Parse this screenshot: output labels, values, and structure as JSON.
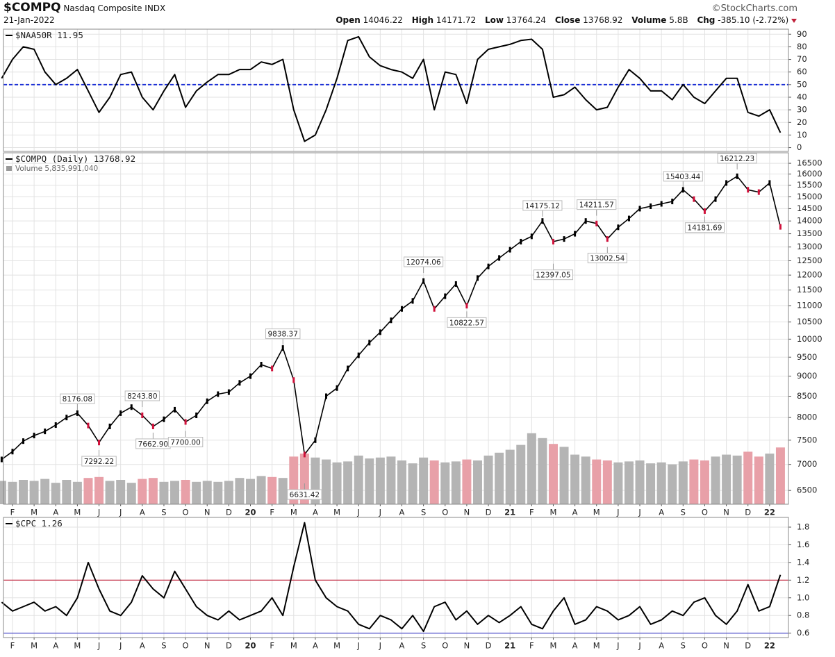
{
  "header": {
    "symbol": "$COMPQ",
    "name": "Nasdaq Composite",
    "exchange": "INDX",
    "date": "21-Jan-2022",
    "copyright": "©StockCharts.com",
    "stats": [
      {
        "label": "Open",
        "value": "14046.22"
      },
      {
        "label": "High",
        "value": "14171.72"
      },
      {
        "label": "Low",
        "value": "13764.24"
      },
      {
        "label": "Close",
        "value": "13768.92"
      },
      {
        "label": "Volume",
        "value": "5.8B"
      },
      {
        "label": "Chg",
        "value": "-385.10 (-2.72%)"
      }
    ]
  },
  "chart_data": [
    {
      "type": "line",
      "title": "$NAA50R",
      "color": "#000000",
      "grid": true,
      "values": [
        55,
        70,
        80,
        78,
        60,
        50,
        55,
        62,
        45,
        28,
        40,
        58,
        60,
        40,
        30,
        45,
        58,
        32,
        45,
        52,
        58,
        58,
        62,
        62,
        68,
        66,
        70,
        30,
        5,
        10,
        30,
        55,
        85,
        88,
        72,
        65,
        62,
        60,
        55,
        70,
        30,
        60,
        58,
        35,
        70,
        78,
        80,
        82,
        85,
        86,
        78,
        40,
        42,
        48,
        38,
        30,
        32,
        48,
        62,
        55,
        45,
        45,
        38,
        50,
        40,
        35,
        45,
        55,
        55,
        28,
        25,
        30,
        11.95
      ],
      "ylim": [
        -3,
        94
      ],
      "yticks": [
        0,
        10,
        20,
        30,
        40,
        50,
        60,
        70,
        80,
        90
      ],
      "reference_lines": [
        {
          "value": 50,
          "color": "#1a2fd6",
          "dash": true
        }
      ]
    },
    {
      "type": "line",
      "title": "$COMPQ (Daily)",
      "log": true,
      "grid": true,
      "color": "#000000",
      "up_color": "#000000",
      "down_color": "#d0103a",
      "categories": [
        null,
        "F",
        null,
        "M",
        null,
        "A",
        null,
        "M",
        null,
        "J",
        null,
        "J",
        null,
        "A",
        null,
        "S",
        null,
        "O",
        null,
        "N",
        null,
        "D",
        null,
        "20",
        null,
        "F",
        null,
        "M",
        null,
        "A",
        null,
        "M",
        null,
        "J",
        null,
        "J",
        null,
        "A",
        null,
        "S",
        null,
        "O",
        null,
        "N",
        null,
        "D",
        null,
        "21",
        null,
        "F",
        null,
        "M",
        null,
        "A",
        null,
        "M",
        null,
        "J",
        null,
        "J",
        null,
        "A",
        null,
        "S",
        null,
        "O",
        null,
        "N",
        null,
        "D",
        null,
        "22",
        null
      ],
      "values": [
        7100,
        7260,
        7480,
        7600,
        7690,
        7830,
        8000,
        8100,
        7820,
        7450,
        7800,
        8100,
        8240,
        8050,
        7800,
        7960,
        8180,
        7900,
        8050,
        8380,
        8550,
        8600,
        8830,
        9000,
        9300,
        9200,
        9750,
        8900,
        7200,
        7500,
        8500,
        8700,
        9200,
        9550,
        9900,
        10200,
        10550,
        10900,
        11150,
        11800,
        10900,
        11300,
        11700,
        11000,
        11900,
        12300,
        12600,
        12900,
        13200,
        13400,
        14000,
        13200,
        13300,
        13500,
        14000,
        13900,
        13300,
        13750,
        14100,
        14500,
        14600,
        14700,
        14800,
        15300,
        14900,
        14400,
        14900,
        15600,
        15900,
        15300,
        15200,
        15600,
        13768.92
      ],
      "ylim": [
        6250,
        17000
      ],
      "yticks": [
        6500,
        7000,
        7500,
        8000,
        8500,
        9000,
        9500,
        10000,
        10500,
        11000,
        11500,
        12000,
        12500,
        13000,
        13500,
        14000,
        14500,
        15000,
        15500,
        16000,
        16500
      ],
      "annotations": [
        {
          "x": 7,
          "value": 8176.08
        },
        {
          "x": 9,
          "value": 7292.22
        },
        {
          "x": 13,
          "value": 8243.8,
          "label": "8243.80"
        },
        {
          "x": 14,
          "value": 7662.9,
          "label": "7662.90"
        },
        {
          "x": 17,
          "value": 7700,
          "label": "7700.00"
        },
        {
          "x": 26,
          "value": 9838.37
        },
        {
          "x": 28,
          "value": 6631.42
        },
        {
          "x": 39,
          "value": 12074.06
        },
        {
          "x": 43,
          "value": 10822.57
        },
        {
          "x": 50,
          "value": 14175.12
        },
        {
          "x": 51,
          "value": 12397.05
        },
        {
          "x": 55,
          "value": 14211.57
        },
        {
          "x": 56,
          "value": 13002.54
        },
        {
          "x": 63,
          "value": 15403.44
        },
        {
          "x": 65,
          "value": 14181.69
        },
        {
          "x": 68,
          "value": 16212.23
        }
      ],
      "volume": {
        "name": "Volume",
        "last_label": "5,835,991,040",
        "values": [
          2400000000.0,
          2300000000.0,
          2500000000.0,
          2400000000.0,
          2600000000.0,
          2200000000.0,
          2500000000.0,
          2300000000.0,
          2700000000.0,
          2800000000.0,
          2400000000.0,
          2500000000.0,
          2200000000.0,
          2600000000.0,
          2700000000.0,
          2300000000.0,
          2400000000.0,
          2500000000.0,
          2300000000.0,
          2400000000.0,
          2300000000.0,
          2400000000.0,
          2700000000.0,
          2600000000.0,
          2900000000.0,
          2800000000.0,
          2700000000.0,
          4900000000.0,
          5200000000.0,
          4800000000.0,
          4600000000.0,
          4300000000.0,
          4400000000.0,
          5000000000.0,
          4700000000.0,
          4800000000.0,
          4900000000.0,
          4500000000.0,
          4200000000.0,
          4800000000.0,
          4500000000.0,
          4300000000.0,
          4400000000.0,
          4600000000.0,
          4500000000.0,
          5000000000.0,
          5300000000.0,
          5600000000.0,
          6100000000.0,
          7300000000.0,
          6800000000.0,
          6200000000.0,
          5900000000.0,
          5100000000.0,
          4900000000.0,
          4600000000.0,
          4500000000.0,
          4300000000.0,
          4400000000.0,
          4500000000.0,
          4200000000.0,
          4300000000.0,
          4100000000.0,
          4400000000.0,
          4600000000.0,
          4500000000.0,
          4900000000.0,
          5100000000.0,
          5000000000.0,
          5400000000.0,
          4900000000.0,
          5200000000.0,
          5835991040
        ]
      }
    },
    {
      "type": "line",
      "title": "$CPC",
      "color": "#000000",
      "grid": true,
      "categories": [
        null,
        "F",
        null,
        "M",
        null,
        "A",
        null,
        "M",
        null,
        "J",
        null,
        "J",
        null,
        "A",
        null,
        "S",
        null,
        "O",
        null,
        "N",
        null,
        "D",
        null,
        "20",
        null,
        "F",
        null,
        "M",
        null,
        "A",
        null,
        "M",
        null,
        "J",
        null,
        "J",
        null,
        "A",
        null,
        "S",
        null,
        "O",
        null,
        "N",
        null,
        "D",
        null,
        "21",
        null,
        "F",
        null,
        "M",
        null,
        "A",
        null,
        "M",
        null,
        "J",
        null,
        "J",
        null,
        "A",
        null,
        "S",
        null,
        "O",
        null,
        "N",
        null,
        "D",
        null,
        "22",
        null
      ],
      "values": [
        0.95,
        0.85,
        0.9,
        0.95,
        0.85,
        0.9,
        0.8,
        1.0,
        1.4,
        1.1,
        0.85,
        0.8,
        0.95,
        1.25,
        1.1,
        1.0,
        1.3,
        1.1,
        0.9,
        0.8,
        0.75,
        0.85,
        0.75,
        0.8,
        0.85,
        1.0,
        0.8,
        1.35,
        1.85,
        1.2,
        1.0,
        0.9,
        0.85,
        0.7,
        0.65,
        0.8,
        0.75,
        0.65,
        0.8,
        0.62,
        0.9,
        0.95,
        0.75,
        0.85,
        0.7,
        0.8,
        0.72,
        0.8,
        0.9,
        0.7,
        0.65,
        0.85,
        1.0,
        0.7,
        0.75,
        0.9,
        0.85,
        0.75,
        0.8,
        0.9,
        0.7,
        0.75,
        0.85,
        0.8,
        0.95,
        1.0,
        0.8,
        0.7,
        0.85,
        1.15,
        0.85,
        0.9,
        1.26
      ],
      "ylim": [
        0.55,
        1.91
      ],
      "yticks": [
        0.6,
        0.8,
        {
          "value": 1,
          "label": "1.0"
        },
        1.2,
        1.4,
        1.6,
        1.8
      ],
      "reference_lines": [
        {
          "value": 1.2,
          "color": "#c0203a",
          "dash": false
        },
        {
          "value": 0.6,
          "color": "#4a4ac8",
          "dash": false
        }
      ]
    }
  ]
}
